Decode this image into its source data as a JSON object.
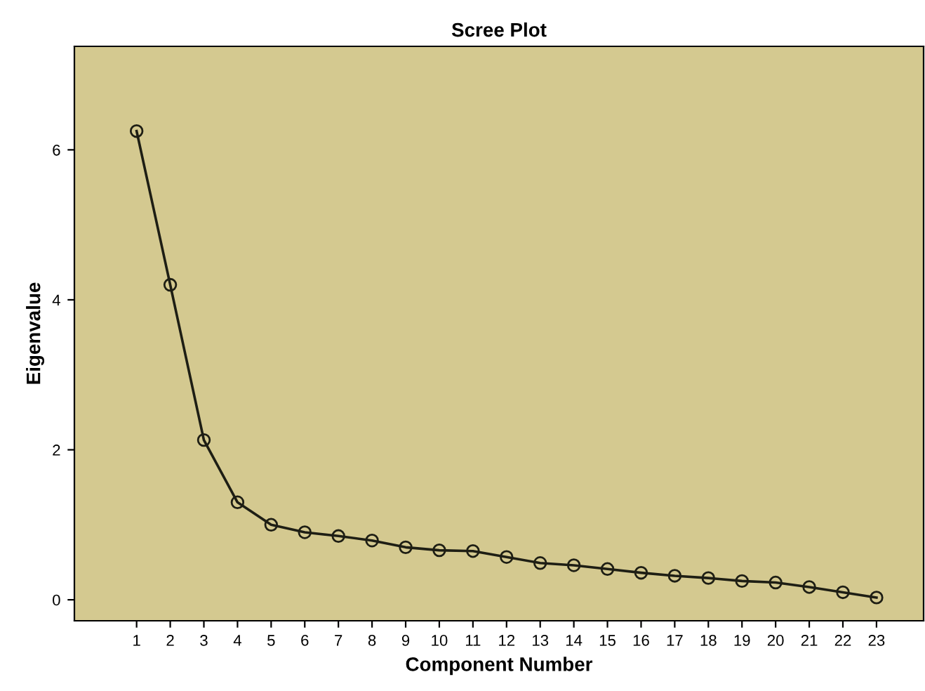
{
  "chart_data": {
    "type": "line",
    "title": "Scree Plot",
    "xlabel": "Component Number",
    "ylabel": "Eigenvalue",
    "categories": [
      "1",
      "2",
      "3",
      "4",
      "5",
      "6",
      "7",
      "8",
      "9",
      "10",
      "11",
      "12",
      "13",
      "14",
      "15",
      "16",
      "17",
      "18",
      "19",
      "20",
      "21",
      "22",
      "23"
    ],
    "series": [
      {
        "color": "#1e1e14",
        "values": [
          6.25,
          4.2,
          2.13,
          1.3,
          1.0,
          0.9,
          0.85,
          0.79,
          0.7,
          0.66,
          0.65,
          0.57,
          0.49,
          0.46,
          0.41,
          0.36,
          0.32,
          0.29,
          0.25,
          0.23,
          0.17,
          0.1,
          0.03
        ]
      }
    ],
    "ylim": [
      -0.28,
      7.38
    ],
    "yticks": [
      0,
      2,
      4,
      6
    ],
    "grid": false,
    "legend": false,
    "marker": "circle",
    "line_style": "solid"
  }
}
